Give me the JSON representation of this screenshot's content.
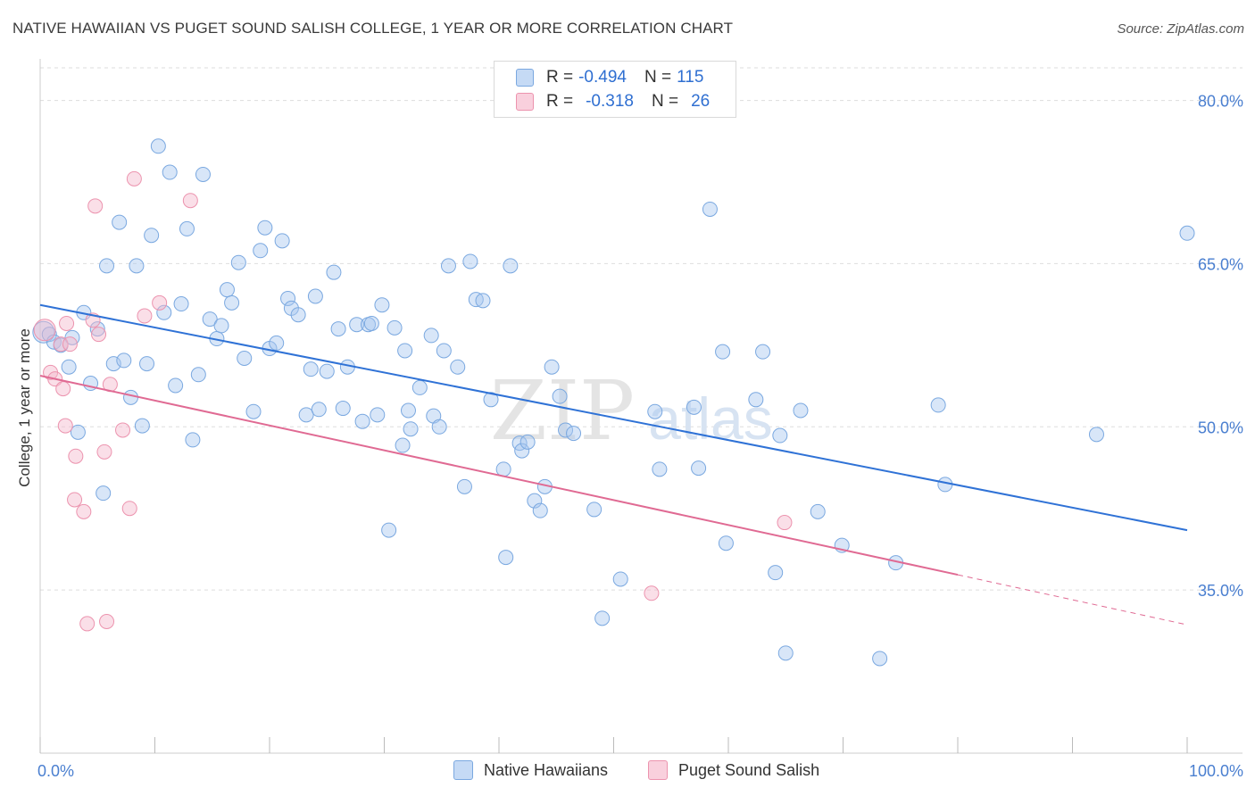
{
  "header": {
    "title": "NATIVE HAWAIIAN VS PUGET SOUND SALISH COLLEGE, 1 YEAR OR MORE CORRELATION CHART",
    "source": "Source: ZipAtlas.com"
  },
  "legend": {
    "rows": [
      {
        "r_label": "R =",
        "r_value": "-0.494",
        "n_label": "N =",
        "n_value": "115",
        "color": "#a9c8f0"
      },
      {
        "r_label": "R =",
        "r_value": "-0.318",
        "n_label": "N =",
        "n_value": "26",
        "color": "#f5b8cb"
      }
    ]
  },
  "watermark": {
    "zip": "ZIP",
    "atlas": "atlas"
  },
  "colors": {
    "blue_fill": "#a9c8f0",
    "blue_stroke": "#7aa8e0",
    "blue_line": "#2f72d6",
    "pink_fill": "#f5b8cb",
    "pink_stroke": "#ec93ae",
    "pink_line": "#e06a93",
    "axis_text": "#4a7fd0",
    "grid": "#dddddd"
  },
  "chart_data": {
    "type": "scatter",
    "title": "NATIVE HAWAIIAN VS PUGET SOUND SALISH COLLEGE, 1 YEAR OR MORE CORRELATION CHART",
    "xlabel": "",
    "ylabel": "College, 1 year or more",
    "xlim": [
      0,
      100
    ],
    "ylim": [
      20,
      83
    ],
    "x_tick_labels": [
      "0.0%",
      "100.0%"
    ],
    "y_ticks": [
      35,
      50,
      65,
      80
    ],
    "y_tick_labels": [
      "35.0%",
      "50.0%",
      "65.0%",
      "80.0%"
    ],
    "grid": true,
    "legend_position": "top-center",
    "series": [
      {
        "name": "Native Hawaiians",
        "color": "#a9c8f0",
        "trend": {
          "x": [
            0,
            100
          ],
          "y": [
            61.2,
            40.5
          ]
        },
        "points": [
          [
            0.3,
            58.7
          ],
          [
            0.8,
            58.5
          ],
          [
            1.2,
            57.8
          ],
          [
            1.8,
            57.5
          ],
          [
            2.5,
            55.5
          ],
          [
            2.8,
            58.2
          ],
          [
            3.3,
            49.5
          ],
          [
            3.8,
            60.5
          ],
          [
            4.4,
            54.0
          ],
          [
            5.0,
            59.0
          ],
          [
            5.5,
            43.9
          ],
          [
            5.8,
            64.8
          ],
          [
            6.4,
            55.8
          ],
          [
            6.9,
            68.8
          ],
          [
            7.3,
            56.1
          ],
          [
            7.9,
            52.7
          ],
          [
            8.4,
            64.8
          ],
          [
            8.9,
            50.1
          ],
          [
            9.3,
            55.8
          ],
          [
            9.7,
            67.6
          ],
          [
            10.3,
            75.8
          ],
          [
            10.8,
            60.5
          ],
          [
            11.3,
            73.4
          ],
          [
            11.8,
            53.8
          ],
          [
            12.3,
            61.3
          ],
          [
            12.8,
            68.2
          ],
          [
            13.3,
            48.8
          ],
          [
            13.8,
            54.8
          ],
          [
            14.2,
            73.2
          ],
          [
            14.8,
            59.9
          ],
          [
            15.4,
            58.1
          ],
          [
            15.8,
            59.3
          ],
          [
            16.3,
            62.6
          ],
          [
            16.7,
            61.4
          ],
          [
            17.3,
            65.1
          ],
          [
            17.8,
            56.3
          ],
          [
            18.6,
            51.4
          ],
          [
            19.2,
            66.2
          ],
          [
            19.6,
            68.3
          ],
          [
            20.0,
            57.2
          ],
          [
            20.6,
            57.7
          ],
          [
            21.1,
            67.1
          ],
          [
            21.6,
            61.8
          ],
          [
            21.9,
            60.9
          ],
          [
            22.5,
            60.3
          ],
          [
            23.2,
            51.1
          ],
          [
            23.6,
            55.3
          ],
          [
            24.0,
            62.0
          ],
          [
            24.3,
            51.6
          ],
          [
            25.0,
            55.1
          ],
          [
            25.6,
            64.2
          ],
          [
            26.0,
            59.0
          ],
          [
            26.4,
            51.7
          ],
          [
            26.8,
            55.5
          ],
          [
            27.6,
            59.4
          ],
          [
            28.1,
            50.5
          ],
          [
            28.6,
            59.4
          ],
          [
            28.9,
            59.5
          ],
          [
            29.4,
            51.1
          ],
          [
            29.8,
            61.2
          ],
          [
            30.4,
            40.5
          ],
          [
            30.9,
            59.1
          ],
          [
            31.6,
            48.3
          ],
          [
            31.8,
            57.0
          ],
          [
            32.1,
            51.5
          ],
          [
            32.3,
            49.8
          ],
          [
            33.1,
            53.6
          ],
          [
            34.1,
            58.4
          ],
          [
            34.3,
            51.0
          ],
          [
            34.8,
            50.0
          ],
          [
            35.2,
            57.0
          ],
          [
            35.6,
            64.8
          ],
          [
            36.4,
            55.5
          ],
          [
            37.0,
            44.5
          ],
          [
            37.5,
            65.2
          ],
          [
            38.0,
            61.7
          ],
          [
            38.6,
            61.6
          ],
          [
            39.3,
            52.5
          ],
          [
            40.4,
            46.1
          ],
          [
            40.6,
            38.0
          ],
          [
            41.0,
            64.8
          ],
          [
            41.8,
            48.5
          ],
          [
            42.0,
            47.8
          ],
          [
            42.5,
            48.6
          ],
          [
            43.1,
            43.2
          ],
          [
            43.6,
            42.3
          ],
          [
            44.0,
            44.5
          ],
          [
            44.6,
            55.5
          ],
          [
            45.3,
            52.8
          ],
          [
            45.8,
            49.7
          ],
          [
            46.5,
            49.4
          ],
          [
            48.3,
            42.4
          ],
          [
            49.0,
            32.4
          ],
          [
            50.6,
            36.0
          ],
          [
            53.6,
            51.4
          ],
          [
            54.0,
            46.1
          ],
          [
            57.0,
            51.8
          ],
          [
            57.4,
            46.2
          ],
          [
            58.4,
            70.0
          ],
          [
            59.5,
            56.9
          ],
          [
            59.8,
            39.3
          ],
          [
            62.4,
            52.5
          ],
          [
            63.0,
            56.9
          ],
          [
            64.1,
            36.6
          ],
          [
            64.5,
            49.2
          ],
          [
            65.0,
            29.2
          ],
          [
            66.3,
            51.5
          ],
          [
            67.8,
            42.2
          ],
          [
            69.9,
            39.1
          ],
          [
            73.2,
            28.7
          ],
          [
            74.6,
            37.5
          ],
          [
            78.3,
            52.0
          ],
          [
            78.9,
            44.7
          ],
          [
            92.1,
            49.3
          ],
          [
            100.0,
            67.8
          ]
        ]
      },
      {
        "name": "Puget Sound Salish",
        "color": "#f5b8cb",
        "trend": {
          "x": [
            0,
            80
          ],
          "y": [
            54.7,
            36.4
          ]
        },
        "trend_extension": {
          "x": [
            80,
            100
          ],
          "y": [
            36.4,
            31.8
          ]
        },
        "points": [
          [
            0.4,
            58.9
          ],
          [
            0.9,
            55.0
          ],
          [
            1.3,
            54.4
          ],
          [
            1.8,
            57.6
          ],
          [
            2.0,
            53.5
          ],
          [
            2.2,
            50.1
          ],
          [
            2.3,
            59.5
          ],
          [
            2.6,
            57.6
          ],
          [
            3.0,
            43.3
          ],
          [
            3.1,
            47.3
          ],
          [
            3.8,
            42.2
          ],
          [
            4.1,
            31.9
          ],
          [
            4.6,
            59.8
          ],
          [
            4.8,
            70.3
          ],
          [
            5.1,
            58.5
          ],
          [
            5.6,
            47.7
          ],
          [
            5.8,
            32.1
          ],
          [
            6.1,
            53.9
          ],
          [
            7.2,
            49.7
          ],
          [
            7.8,
            42.5
          ],
          [
            8.2,
            72.8
          ],
          [
            9.1,
            60.2
          ],
          [
            10.4,
            61.4
          ],
          [
            13.1,
            70.8
          ],
          [
            53.3,
            34.7
          ],
          [
            64.9,
            41.2
          ]
        ]
      }
    ]
  },
  "bottom_legend": {
    "items": [
      {
        "label": "Native Hawaiians",
        "color": "#a9c8f0"
      },
      {
        "label": "Puget Sound Salish",
        "color": "#f5b8cb"
      }
    ]
  }
}
